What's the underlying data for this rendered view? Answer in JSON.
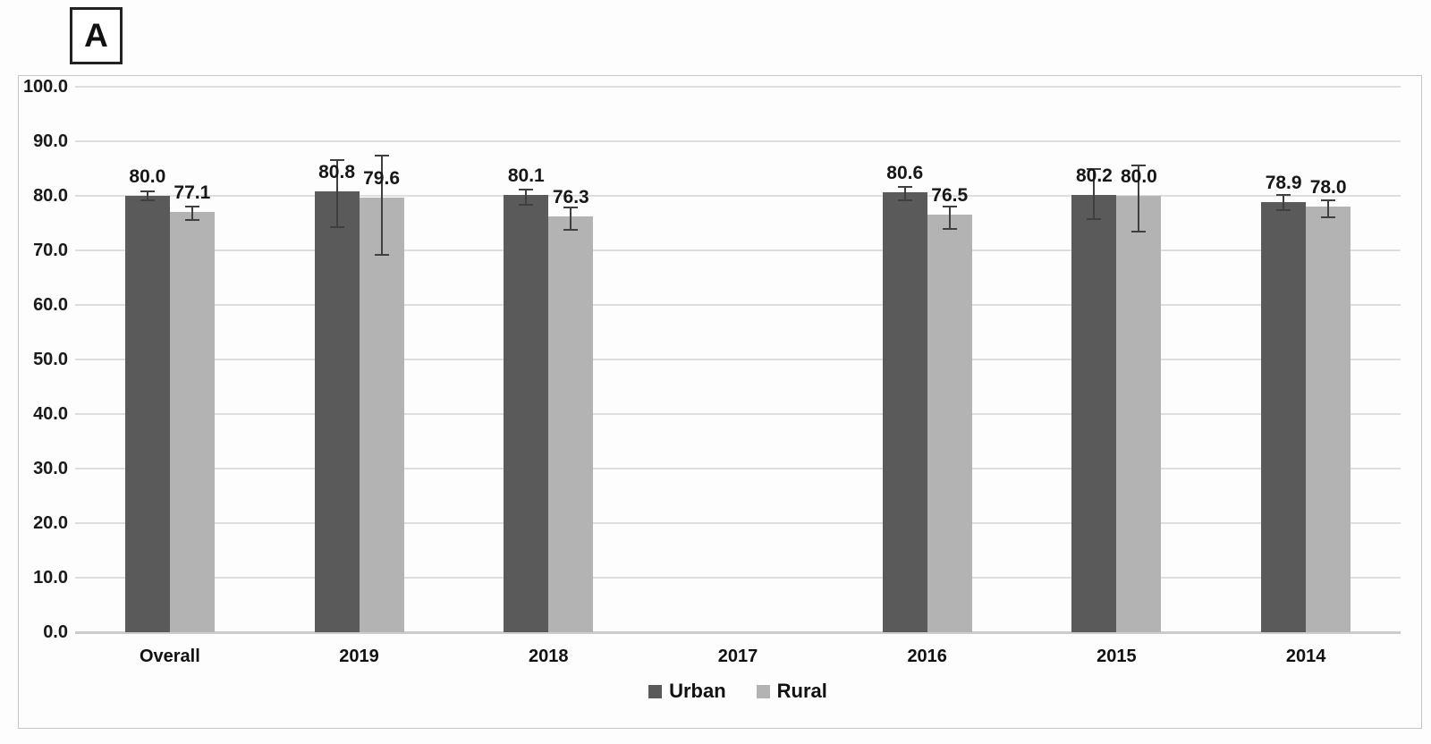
{
  "panel_label": "A",
  "colors": {
    "urban": "#5a5a5a",
    "rural": "#b3b3b3",
    "gridline": "#dedede",
    "axis_line": "#cccccc",
    "error_bar": "#3f3f3f",
    "figure_border": "#c4c4c4",
    "text": "#111111"
  },
  "chart_data": {
    "type": "bar",
    "title": "",
    "xlabel": "",
    "ylabel": "",
    "categories": [
      "Overall",
      "2019",
      "2018",
      "2017",
      "2016",
      "2015",
      "2014"
    ],
    "series": [
      {
        "name": "Urban",
        "color_key": "urban",
        "values": [
          80.0,
          80.8,
          80.1,
          null,
          80.6,
          80.2,
          78.9
        ],
        "error_up": [
          0.9,
          5.8,
          1.1,
          null,
          1.1,
          4.8,
          1.2
        ],
        "error_down": [
          0.9,
          6.5,
          1.7,
          null,
          1.4,
          4.4,
          1.5
        ]
      },
      {
        "name": "Rural",
        "color_key": "rural",
        "values": [
          77.1,
          79.6,
          76.3,
          null,
          76.5,
          80.0,
          78.0
        ],
        "error_up": [
          0.9,
          7.8,
          1.6,
          null,
          1.6,
          5.5,
          1.2
        ],
        "error_down": [
          1.6,
          10.4,
          2.5,
          null,
          2.5,
          6.5,
          2.0
        ]
      }
    ],
    "ylim": [
      0,
      100
    ],
    "ytick_step": 10,
    "yticks": [
      "100.0",
      "90.0",
      "80.0",
      "70.0",
      "60.0",
      "50.0",
      "40.0",
      "30.0",
      "20.0",
      "10.0",
      "0.0"
    ],
    "grid": true,
    "value_label_decimals": 1,
    "legend": {
      "position": "bottom",
      "entries": [
        "Urban",
        "Rural"
      ]
    }
  }
}
